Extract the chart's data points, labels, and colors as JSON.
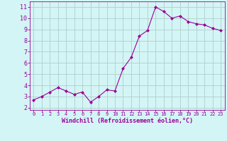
{
  "x": [
    0,
    1,
    2,
    3,
    4,
    5,
    6,
    7,
    8,
    9,
    10,
    11,
    12,
    13,
    14,
    15,
    16,
    17,
    18,
    19,
    20,
    21,
    22,
    23
  ],
  "y": [
    2.7,
    3.0,
    3.4,
    3.8,
    3.5,
    3.2,
    3.4,
    2.5,
    3.0,
    3.6,
    3.5,
    5.5,
    6.5,
    8.4,
    8.9,
    11.0,
    10.6,
    10.0,
    10.2,
    9.7,
    9.5,
    9.4,
    9.1,
    8.9
  ],
  "line_color": "#990099",
  "marker": "D",
  "marker_size": 2,
  "bg_color": "#d4f5f5",
  "grid_color": "#b0cece",
  "xlabel": "Windchill (Refroidissement éolien,°C)",
  "xlabel_color": "#990099",
  "tick_color": "#990099",
  "yticks": [
    2,
    3,
    4,
    5,
    6,
    7,
    8,
    9,
    10,
    11
  ],
  "xticks": [
    0,
    1,
    2,
    3,
    4,
    5,
    6,
    7,
    8,
    9,
    10,
    11,
    12,
    13,
    14,
    15,
    16,
    17,
    18,
    19,
    20,
    21,
    22,
    23
  ],
  "ylim": [
    1.8,
    11.5
  ],
  "xlim": [
    -0.5,
    23.5
  ]
}
